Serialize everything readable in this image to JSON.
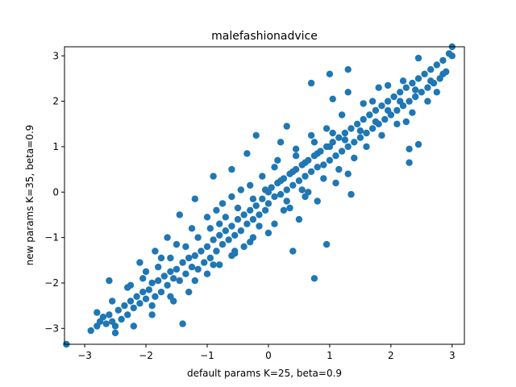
{
  "chart_data": {
    "type": "scatter",
    "title": "malefashionadvice",
    "xlabel": "default params K=25, beta=0.9",
    "ylabel": "new params K=35, beta=0.9",
    "xlim": [
      -3.33,
      3.2
    ],
    "ylim": [
      -3.35,
      3.2
    ],
    "xticks": [
      -3,
      -2,
      -1,
      0,
      1,
      2,
      3
    ],
    "yticks": [
      -3,
      -2,
      -1,
      0,
      1,
      2,
      3
    ],
    "xtick_labels": [
      "−3",
      "−2",
      "−1",
      "0",
      "1",
      "2",
      "3"
    ],
    "ytick_labels": [
      "−3",
      "−2",
      "−1",
      "0",
      "1",
      "2",
      "3"
    ],
    "grid": false,
    "marker_color": "#1f77b4",
    "series": [
      {
        "points": [
          [
            -3.3,
            -3.35
          ],
          [
            -2.9,
            -3.05
          ],
          [
            -2.8,
            -2.95
          ],
          [
            -2.75,
            -2.85
          ],
          [
            -2.7,
            -2.75
          ],
          [
            -2.65,
            -2.9
          ],
          [
            -2.6,
            -2.7
          ],
          [
            -2.55,
            -2.85
          ],
          [
            -2.5,
            -3.1
          ],
          [
            -2.5,
            -2.95
          ],
          [
            -2.45,
            -2.6
          ],
          [
            -2.4,
            -2.8
          ],
          [
            -2.35,
            -2.5
          ],
          [
            -2.3,
            -2.7
          ],
          [
            -2.25,
            -2.4
          ],
          [
            -2.2,
            -2.55
          ],
          [
            -2.2,
            -2.95
          ],
          [
            -2.15,
            -2.3
          ],
          [
            -2.1,
            -2.45
          ],
          [
            -2.05,
            -2.2
          ],
          [
            -2.0,
            -2.35
          ],
          [
            -1.95,
            -2.15
          ],
          [
            -1.9,
            -2.5
          ],
          [
            -1.9,
            -2.0
          ],
          [
            -1.85,
            -2.3
          ],
          [
            -1.8,
            -1.95
          ],
          [
            -1.75,
            -2.2
          ],
          [
            -1.7,
            -1.85
          ],
          [
            -1.65,
            -2.05
          ],
          [
            -1.6,
            -1.75
          ],
          [
            -1.55,
            -2.4
          ],
          [
            -1.55,
            -1.9
          ],
          [
            -1.5,
            -1.7
          ],
          [
            -1.45,
            -1.95
          ],
          [
            -1.4,
            -2.9
          ],
          [
            -1.4,
            -1.55
          ],
          [
            -1.35,
            -1.8
          ],
          [
            -1.3,
            -1.45
          ],
          [
            -1.3,
            -2.2
          ],
          [
            -1.25,
            -1.65
          ],
          [
            -1.2,
            -1.4
          ],
          [
            -1.15,
            -1.7
          ],
          [
            -1.1,
            -1.3
          ],
          [
            -1.05,
            -1.55
          ],
          [
            -1.0,
            -1.2
          ],
          [
            -1.0,
            -1.8
          ],
          [
            -0.95,
            -1.45
          ],
          [
            -0.9,
            -1.05
          ],
          [
            -0.85,
            -1.3
          ],
          [
            -0.8,
            -0.95
          ],
          [
            -0.8,
            -1.6
          ],
          [
            -0.75,
            -1.15
          ],
          [
            -0.7,
            -0.85
          ],
          [
            -0.65,
            -1.05
          ],
          [
            -0.6,
            -0.75
          ],
          [
            -0.6,
            -1.4
          ],
          [
            -0.55,
            -0.95
          ],
          [
            -0.5,
            -0.6
          ],
          [
            -0.45,
            -0.85
          ],
          [
            -0.4,
            -0.5
          ],
          [
            -0.4,
            -1.2
          ],
          [
            -0.35,
            -0.7
          ],
          [
            -0.3,
            -0.4
          ],
          [
            -0.25,
            -0.6
          ],
          [
            -0.2,
            -0.3
          ],
          [
            -0.15,
            -0.5
          ],
          [
            -0.1,
            -0.15
          ],
          [
            -0.05,
            -0.4
          ],
          [
            0.0,
            0.0
          ],
          [
            0.0,
            -0.25
          ],
          [
            0.05,
            0.1
          ],
          [
            0.1,
            -0.1
          ],
          [
            0.15,
            0.2
          ],
          [
            0.2,
            -0.05
          ],
          [
            0.25,
            0.3
          ],
          [
            0.3,
            0.05
          ],
          [
            0.35,
            0.4
          ],
          [
            0.4,
            0.15
          ],
          [
            0.45,
            0.5
          ],
          [
            0.5,
            0.25
          ],
          [
            0.55,
            0.6
          ],
          [
            0.6,
            0.35
          ],
          [
            0.65,
            0.7
          ],
          [
            0.7,
            0.45
          ],
          [
            0.75,
            0.8
          ],
          [
            0.8,
            0.55
          ],
          [
            0.85,
            0.9
          ],
          [
            0.9,
            0.6
          ],
          [
            0.95,
            1.0
          ],
          [
            1.0,
            0.7
          ],
          [
            1.05,
            1.1
          ],
          [
            1.1,
            0.8
          ],
          [
            1.15,
            1.2
          ],
          [
            1.2,
            0.9
          ],
          [
            1.25,
            1.3
          ],
          [
            1.3,
            1.0
          ],
          [
            1.35,
            1.4
          ],
          [
            1.4,
            1.1
          ],
          [
            1.45,
            1.5
          ],
          [
            1.5,
            1.2
          ],
          [
            1.55,
            1.6
          ],
          [
            1.6,
            1.3
          ],
          [
            1.65,
            1.7
          ],
          [
            1.7,
            1.4
          ],
          [
            1.75,
            1.8
          ],
          [
            1.8,
            1.5
          ],
          [
            1.85,
            1.9
          ],
          [
            1.9,
            1.6
          ],
          [
            1.95,
            2.0
          ],
          [
            2.0,
            1.7
          ],
          [
            2.05,
            2.1
          ],
          [
            2.1,
            1.8
          ],
          [
            2.15,
            2.2
          ],
          [
            2.2,
            1.9
          ],
          [
            2.25,
            2.3
          ],
          [
            2.3,
            2.0
          ],
          [
            2.35,
            2.4
          ],
          [
            2.4,
            2.1
          ],
          [
            2.45,
            2.5
          ],
          [
            2.5,
            2.2
          ],
          [
            2.55,
            2.6
          ],
          [
            2.6,
            2.3
          ],
          [
            2.65,
            2.7
          ],
          [
            2.7,
            2.4
          ],
          [
            2.75,
            2.8
          ],
          [
            2.8,
            2.5
          ],
          [
            2.85,
            2.9
          ],
          [
            2.9,
            2.65
          ],
          [
            2.95,
            3.05
          ],
          [
            3.0,
            3.0
          ],
          [
            3.0,
            3.2
          ],
          [
            2.45,
            2.95
          ],
          [
            2.2,
            2.45
          ],
          [
            1.95,
            2.35
          ],
          [
            1.7,
            2.0
          ],
          [
            1.3,
            2.2
          ],
          [
            1.05,
            2.05
          ],
          [
            0.7,
            2.4
          ],
          [
            1.0,
            2.6
          ],
          [
            1.3,
            2.7
          ],
          [
            0.3,
            1.45
          ],
          [
            0.2,
            1.1
          ],
          [
            -0.2,
            1.25
          ],
          [
            -0.35,
            0.85
          ],
          [
            -0.6,
            0.5
          ],
          [
            -0.9,
            0.35
          ],
          [
            -1.2,
            -0.15
          ],
          [
            -1.45,
            -0.5
          ],
          [
            -1.65,
            -1.0
          ],
          [
            -1.85,
            -1.3
          ],
          [
            -2.1,
            -1.55
          ],
          [
            -2.6,
            -1.95
          ],
          [
            0.95,
            -1.15
          ],
          [
            0.4,
            -1.3
          ],
          [
            0.75,
            -1.9
          ],
          [
            1.35,
            -0.05
          ],
          [
            2.3,
            0.95
          ],
          [
            2.25,
            1.55
          ],
          [
            2.3,
            0.65
          ],
          [
            2.45,
            1.05
          ],
          [
            0.5,
            -0.6
          ],
          [
            0.8,
            -0.2
          ],
          [
            1.1,
            0.2
          ],
          [
            1.3,
            0.4
          ],
          [
            0.0,
            -0.9
          ],
          [
            -0.3,
            -1.1
          ],
          [
            -0.55,
            -1.3
          ],
          [
            -0.15,
            -0.75
          ],
          [
            0.25,
            -0.4
          ],
          [
            0.6,
            -0.1
          ],
          [
            -0.75,
            -0.25
          ],
          [
            -0.45,
            0.05
          ],
          [
            -0.1,
            0.35
          ],
          [
            0.15,
            0.7
          ],
          [
            0.45,
            0.95
          ],
          [
            0.7,
            1.25
          ],
          [
            0.95,
            1.4
          ],
          [
            1.2,
            1.7
          ],
          [
            1.55,
            1.95
          ],
          [
            1.8,
            2.3
          ],
          [
            -1.0,
            -0.55
          ],
          [
            -1.25,
            -0.8
          ],
          [
            -1.5,
            -1.15
          ],
          [
            -1.75,
            -1.45
          ],
          [
            -2.0,
            -1.75
          ],
          [
            -2.3,
            -2.1
          ],
          [
            -2.55,
            -2.4
          ],
          [
            -2.8,
            -2.65
          ],
          [
            -0.85,
            -0.4
          ],
          [
            -0.6,
            -0.1
          ],
          [
            -1.9,
            -2.7
          ],
          [
            -1.6,
            -2.3
          ],
          [
            -1.2,
            -1.95
          ],
          [
            -0.9,
            -1.6
          ],
          [
            -0.55,
            -1.35
          ],
          [
            -0.25,
            -1.0
          ],
          [
            0.1,
            -0.7
          ],
          [
            0.35,
            -0.35
          ],
          [
            0.65,
            0.0
          ],
          [
            0.9,
            0.3
          ],
          [
            1.15,
            0.5
          ],
          [
            1.4,
            0.75
          ],
          [
            1.6,
            1.0
          ],
          [
            1.85,
            1.25
          ],
          [
            2.1,
            1.5
          ],
          [
            2.35,
            1.75
          ],
          [
            2.6,
            2.0
          ],
          [
            2.75,
            2.2
          ],
          [
            0.55,
            0.05
          ],
          [
            0.3,
            -0.2
          ],
          [
            1.0,
            1.0
          ],
          [
            0.8,
            0.85
          ],
          [
            0.6,
            0.65
          ],
          [
            0.4,
            0.45
          ],
          [
            0.2,
            0.25
          ],
          [
            -0.05,
            0.05
          ],
          [
            -0.25,
            -0.15
          ],
          [
            -0.5,
            -0.35
          ],
          [
            -0.7,
            -0.55
          ],
          [
            -0.95,
            -0.8
          ],
          [
            -1.15,
            -1.0
          ],
          [
            -1.35,
            -1.2
          ],
          [
            -1.6,
            -1.45
          ],
          [
            -1.8,
            -1.65
          ],
          [
            -2.05,
            -1.9
          ],
          [
            -2.25,
            -2.05
          ],
          [
            1.25,
            1.15
          ],
          [
            1.5,
            1.35
          ],
          [
            1.75,
            1.55
          ],
          [
            1.95,
            1.8
          ],
          [
            2.15,
            2.0
          ],
          [
            2.4,
            2.25
          ],
          [
            2.65,
            2.45
          ],
          [
            2.85,
            2.6
          ],
          [
            0.1,
            0.55
          ],
          [
            -0.3,
            0.15
          ],
          [
            0.45,
            0.8
          ],
          [
            0.75,
            1.1
          ],
          [
            1.05,
            1.3
          ],
          [
            -0.8,
            -0.7
          ]
        ]
      }
    ]
  }
}
